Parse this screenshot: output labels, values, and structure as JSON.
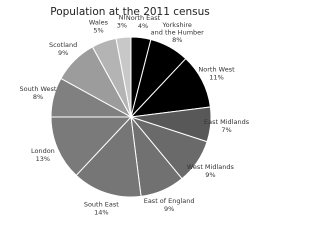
{
  "chart_data": {
    "type": "pie",
    "title": "Population at the 2011 census",
    "categories": [
      "North East",
      "Yorkshire and the Humber",
      "North West",
      "East Midlands",
      "West Midlands",
      "East of England",
      "South East",
      "London",
      "South West",
      "Scotland",
      "Wales",
      "NI"
    ],
    "values": [
      4,
      8,
      11,
      7,
      9,
      9,
      14,
      13,
      8,
      9,
      5,
      3
    ],
    "value_labels": [
      "4%",
      "8%",
      "11%",
      "7%",
      "9%",
      "9%",
      "14%",
      "13%",
      "8%",
      "9%",
      "5%",
      "3%"
    ],
    "colors": [
      "#000000",
      "#000000",
      "#000000",
      "#585858",
      "#6a6a6a",
      "#717171",
      "#767676",
      "#7a7a7a",
      "#808080",
      "#9c9c9c",
      "#b4b4b4",
      "#c8c8c8"
    ]
  }
}
